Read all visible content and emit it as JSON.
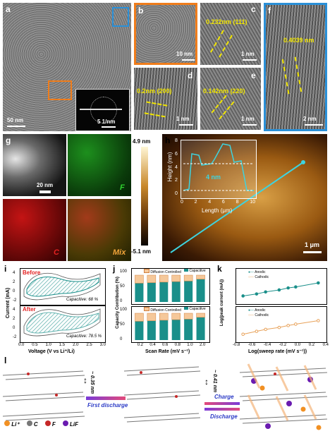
{
  "panel_a": {
    "label": "a",
    "scale": "50 nm",
    "inset_scale": "5 1/nm"
  },
  "panel_b": {
    "label": "b",
    "scale": "10 nm"
  },
  "panel_c": {
    "label": "c",
    "spacing": "0.232nm  (111)",
    "scale": "1 nm"
  },
  "panel_d": {
    "label": "d",
    "spacing": "0.2nm  (200)",
    "scale": "1 nm"
  },
  "panel_e": {
    "label": "e",
    "spacing": "0.142nm  (220)",
    "scale": "1 nm"
  },
  "panel_f": {
    "label": "f",
    "spacing": "0.4039 nm",
    "scale": "2 nm"
  },
  "panel_g": {
    "label": "g",
    "scale": "20 nm",
    "maps": [
      "F",
      "C",
      "Mix"
    ],
    "map_colors": [
      "#2fd12f",
      "#e32222",
      "#f2a43a"
    ]
  },
  "panel_h": {
    "label": "h",
    "scale": "1 μm",
    "colorbar_top": "4.9 nm",
    "colorbar_bottom": "-5.1 nm",
    "inset_xlabel": "Length (μm)",
    "inset_ylabel": "Height (nm)",
    "inset_annotation": "4 nm",
    "inset_xticks": [
      "0",
      "2",
      "4",
      "6",
      "8",
      "10"
    ],
    "inset_yticks": [
      "0",
      "2",
      "4",
      "6",
      "8"
    ]
  },
  "panel_i": {
    "label": "i",
    "ylabel": "Current (mA)",
    "xlabel": "Voltage (V vs Li⁺/Li)",
    "before_label": "Before",
    "after_label": "After",
    "before_capacitive": "Capacitive: 68 %",
    "after_capacitive": "Capacitive: 78.5 %",
    "xticks": [
      "0.0",
      "0.5",
      "1.0",
      "1.5",
      "2.0",
      "2.5",
      "3.0"
    ],
    "yticks_top": [
      "4",
      "2",
      "0",
      "-2"
    ],
    "yticks_bottom": [
      "4",
      "2",
      "0",
      "-2"
    ]
  },
  "panel_j": {
    "label": "j",
    "ylabel": "Capacity Contribution (%)",
    "xlabel": "Scan Rate (mV s⁻¹)",
    "legend": [
      "Diffusion Controlled",
      "Capacitive"
    ],
    "xticks": [
      "0.2",
      "0.4",
      "0.6",
      "0.8",
      "1.0",
      "2.0"
    ],
    "yticks": [
      "100",
      "50",
      "0"
    ]
  },
  "panel_k": {
    "label": "k",
    "ylabel": "Log(peak current (mA))",
    "xlabel": "Log(sweep rate (mV s⁻¹))",
    "legend": [
      "Anodic",
      "Cathodic"
    ],
    "xticks": [
      "-0.8",
      "-0.6",
      "-0.4",
      "-0.2",
      "0.0",
      "0.2",
      "0.4"
    ]
  },
  "panel_l": {
    "label": "l",
    "d1": "~ 0.35 nm",
    "d2": "~ 0.41 nm",
    "first_discharge": "First discharge",
    "charge": "Charge",
    "discharge": "Discharge",
    "legend": [
      "Li⁺",
      "C",
      "F",
      "LiF"
    ]
  },
  "chart_data": [
    {
      "type": "bar",
      "title": "",
      "xlabel": "Scan Rate (mV s⁻¹)",
      "ylabel": "Capacity Contribution (%)",
      "categories": [
        "0.2",
        "0.4",
        "0.6",
        "0.8",
        "1.0",
        "2.0"
      ],
      "series": [
        {
          "name": "Capacitive",
          "values": [
            70,
            72,
            74,
            76,
            78,
            85
          ]
        },
        {
          "name": "Diffusion Controlled",
          "values": [
            30,
            28,
            26,
            24,
            22,
            15
          ]
        }
      ],
      "panels": [
        "top",
        "bottom"
      ],
      "ylim": [
        0,
        100
      ]
    },
    {
      "type": "line",
      "xlabel": "Log(sweep rate (mV s⁻¹))",
      "ylabel": "Log(peak current (mA))",
      "x": [
        -0.7,
        -0.52,
        -0.4,
        -0.22,
        -0.1,
        0.0,
        0.3
      ],
      "series": [
        {
          "name": "Anodic",
          "values": [
            0.1,
            0.2,
            0.3,
            0.4,
            0.5,
            0.55,
            0.75
          ]
        },
        {
          "name": "Cathodic",
          "values": [
            -0.2,
            -0.05,
            0.05,
            0.15,
            0.25,
            0.32,
            0.5
          ]
        }
      ],
      "xlim": [
        -0.8,
        0.4
      ]
    }
  ]
}
